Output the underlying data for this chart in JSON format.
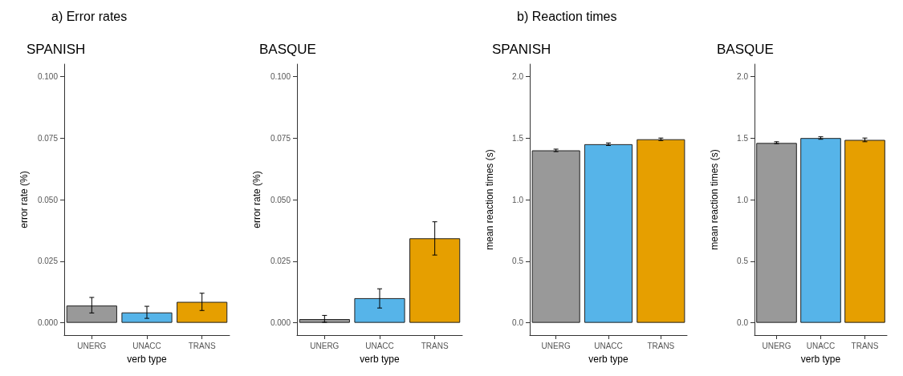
{
  "chart_data": [
    {
      "type": "bar",
      "title": "a) Error rates",
      "subtitle": "SPANISH",
      "xlabel": "verb type",
      "ylabel": "error rate (%)",
      "categories": [
        "UNERG",
        "UNACC",
        "TRANS"
      ],
      "values": [
        0.007,
        0.0042,
        0.0085
      ],
      "colors": [
        "#999999",
        "#56b4e9",
        "#e69f00"
      ],
      "errors": [
        [
          0.004,
          0.0103
        ],
        [
          0.0018,
          0.0067
        ],
        [
          0.005,
          0.012
        ]
      ],
      "ylim": [
        -0.005,
        0.105
      ],
      "yticks": [
        {
          "value": 0,
          "label": "0.000"
        },
        0.025,
        {
          "value": 0.05,
          "label": "0.050"
        },
        0.075,
        {
          "value": 0.1,
          "label": "0.100"
        }
      ]
    },
    {
      "type": "bar",
      "subtitle": "BASQUE",
      "xlabel": "verb type",
      "ylabel": "error rate (%)",
      "categories": [
        "UNERG",
        "UNACC",
        "TRANS"
      ],
      "values": [
        0.0015,
        0.01,
        0.0343
      ],
      "colors": [
        "#999999",
        "#56b4e9",
        "#e69f00"
      ],
      "errors": [
        [
          0.0002,
          0.003
        ],
        [
          0.006,
          0.0138
        ],
        [
          0.0275,
          0.041
        ]
      ],
      "ylim": [
        -0.005,
        0.105
      ],
      "yticks": [
        {
          "value": 0,
          "label": "0.000"
        },
        0.025,
        {
          "value": 0.05,
          "label": "0.050"
        },
        0.075,
        {
          "value": 0.1,
          "label": "0.100"
        }
      ]
    },
    {
      "type": "bar",
      "title": "b) Reaction times",
      "subtitle": "SPANISH",
      "xlabel": "verb type",
      "ylabel": "mean reaction times (s)",
      "categories": [
        "UNERG",
        "UNACC",
        "TRANS"
      ],
      "values": [
        1.4,
        1.45,
        1.49
      ],
      "colors": [
        "#999999",
        "#56b4e9",
        "#e69f00"
      ],
      "errors": [
        [
          1.39,
          1.41
        ],
        [
          1.44,
          1.46
        ],
        [
          1.48,
          1.5
        ]
      ],
      "ylim": [
        -0.1,
        2.1
      ],
      "yticks": [
        {
          "value": 0,
          "label": "0.0"
        },
        0.5,
        {
          "value": 1,
          "label": "1.0"
        },
        1.5,
        {
          "value": 2,
          "label": "2.0"
        }
      ]
    },
    {
      "type": "bar",
      "subtitle": "BASQUE",
      "xlabel": "verb type",
      "ylabel": "mean reaction times (s)",
      "categories": [
        "UNERG",
        "UNACC",
        "TRANS"
      ],
      "values": [
        1.46,
        1.5,
        1.485
      ],
      "colors": [
        "#999999",
        "#56b4e9",
        "#e69f00"
      ],
      "errors": [
        [
          1.455,
          1.47
        ],
        [
          1.49,
          1.51
        ],
        [
          1.47,
          1.5
        ]
      ],
      "ylim": [
        -0.1,
        2.1
      ],
      "yticks": [
        {
          "value": 0,
          "label": "0.0"
        },
        0.5,
        {
          "value": 1,
          "label": "1.0"
        },
        1.5,
        {
          "value": 2,
          "label": "2.0"
        }
      ]
    }
  ]
}
